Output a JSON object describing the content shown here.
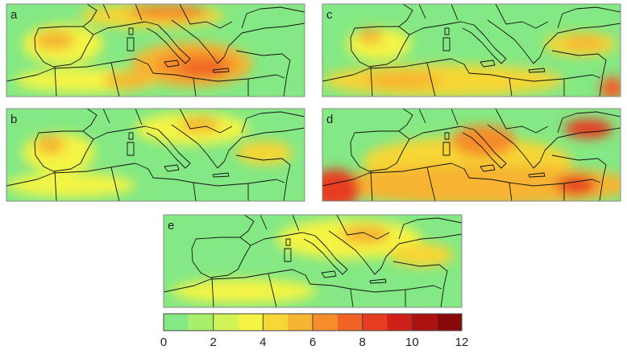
{
  "panels": [
    {
      "label": "a"
    },
    {
      "label": "c"
    },
    {
      "label": "b"
    },
    {
      "label": "d"
    },
    {
      "label": "e"
    }
  ],
  "colorbar": {
    "bins": [
      0,
      1,
      2,
      3,
      4,
      5,
      6,
      7,
      8,
      9,
      10,
      11,
      12
    ],
    "colors": [
      "#84e884",
      "#a8f06c",
      "#d2f458",
      "#f4f444",
      "#f6d636",
      "#f6b430",
      "#f58c2a",
      "#f06226",
      "#e63c20",
      "#cf201a",
      "#ad1212",
      "#860a0a"
    ],
    "ticks": [
      0,
      2,
      4,
      6,
      8,
      10,
      12
    ]
  }
}
